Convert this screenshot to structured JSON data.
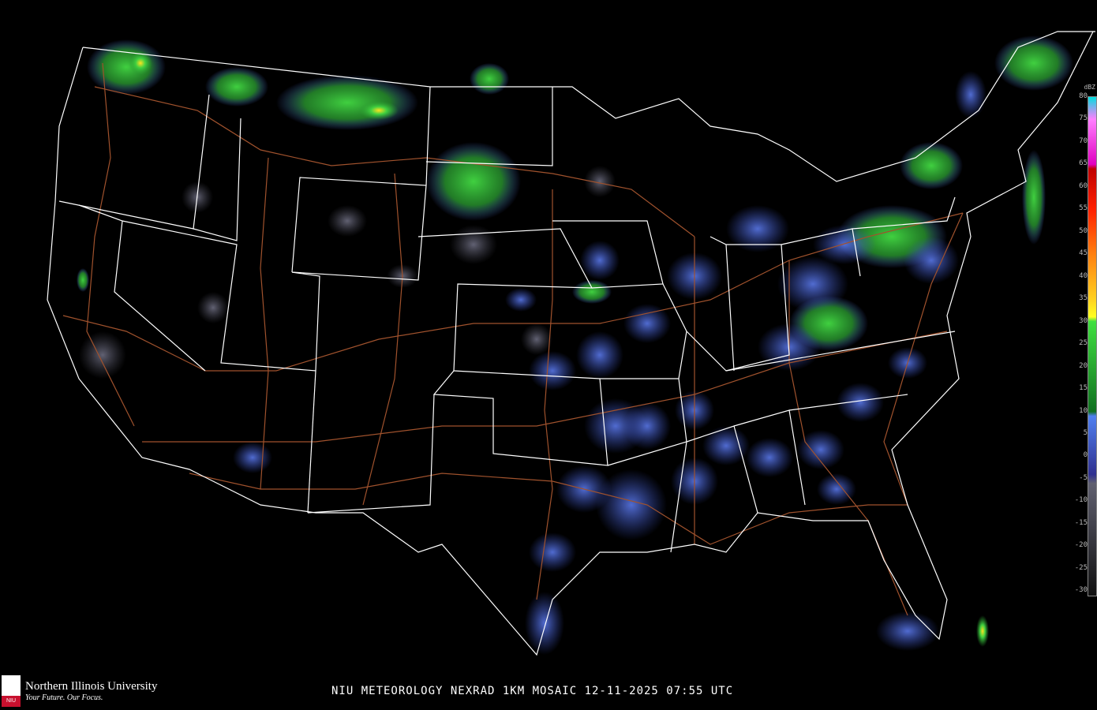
{
  "title": "NIU METEOROLOGY NEXRAD 1KM MOSAIC  12-11-2025 07:55 UTC",
  "logo": {
    "name": "Northern Illinois University",
    "tagline": "Your Future. Our Focus.",
    "mark": "NIU"
  },
  "legend": {
    "unit": "dBZ",
    "labels": [
      "80",
      "75",
      "70",
      "65",
      "60",
      "55",
      "50",
      "45",
      "40",
      "35",
      "30",
      "25",
      "20",
      "15",
      "10",
      "5",
      "0",
      "-5",
      "-10",
      "-15",
      "-20",
      "-25",
      "-30"
    ],
    "stops": [
      {
        "dbz": 80,
        "color": "#00e0e0"
      },
      {
        "dbz": 77,
        "color": "#a0a0f0"
      },
      {
        "dbz": 75,
        "color": "#ff80ff"
      },
      {
        "dbz": 65,
        "color": "#e000c0"
      },
      {
        "dbz": 64,
        "color": "#c00000"
      },
      {
        "dbz": 55,
        "color": "#ff2000"
      },
      {
        "dbz": 45,
        "color": "#ff8010"
      },
      {
        "dbz": 35,
        "color": "#ffd020"
      },
      {
        "dbz": 31,
        "color": "#ffff20"
      },
      {
        "dbz": 30,
        "color": "#40e040"
      },
      {
        "dbz": 10,
        "color": "#107020"
      },
      {
        "dbz": 9,
        "color": "#5080f0"
      },
      {
        "dbz": -4,
        "color": "#303090"
      },
      {
        "dbz": -6,
        "color": "#606070"
      },
      {
        "dbz": -31,
        "color": "#101010"
      }
    ]
  },
  "colors": {
    "background": "#000000",
    "borders": "#ffffff",
    "highways": "#a0522d",
    "light_echo": "#4a66d8",
    "moderate_echo": "#2eaa3a",
    "heavy_echo": "#ffd020"
  }
}
